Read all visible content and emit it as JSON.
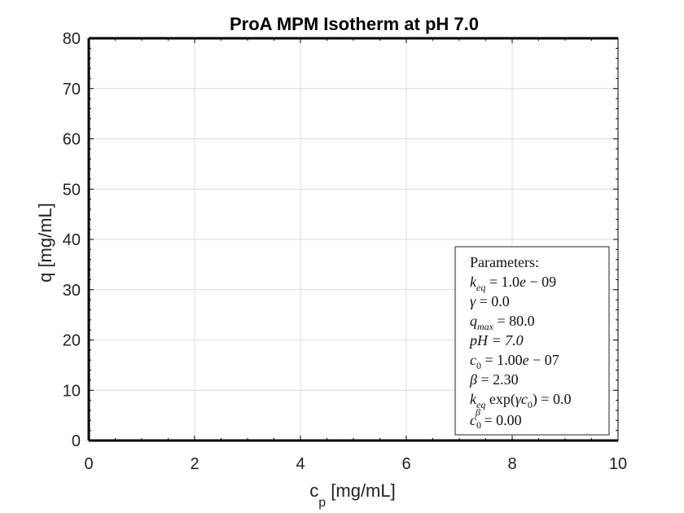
{
  "chart_data": {
    "type": "line",
    "title": "ProA MPM Isotherm at pH 7.0",
    "xlabel": "c_p [mg/mL]",
    "xlabel_main": "c",
    "xlabel_sub": "p",
    "xlabel_rest": " [mg/mL]",
    "ylabel": "q [mg/mL]",
    "xlim": [
      0,
      10
    ],
    "ylim": [
      0,
      80
    ],
    "xticks": [
      0,
      2,
      4,
      6,
      8,
      10
    ],
    "yticks": [
      0,
      10,
      20,
      30,
      40,
      50,
      60,
      70,
      80
    ],
    "xtick_labels": [
      "0",
      "2",
      "4",
      "6",
      "8",
      "10"
    ],
    "ytick_labels": [
      "0",
      "10",
      "20",
      "30",
      "40",
      "50",
      "60",
      "70",
      "80"
    ],
    "grid": true,
    "legend_placement": "bottom-right",
    "series": [
      {
        "x": [
          0,
          10
        ],
        "values": [
          0,
          0
        ],
        "color": "#000000"
      }
    ],
    "annotation": {
      "heading": "Parameters:",
      "lines": [
        "k_eq = 1.0e − 09",
        "γ = 0.0",
        "q_max = 80.0",
        "pH = 7.0",
        "c_0 = 1.00e − 07",
        "β = 2.30",
        "k_eq exp(γc_0) = 0.0",
        "c_0^β = 0.00"
      ]
    }
  }
}
